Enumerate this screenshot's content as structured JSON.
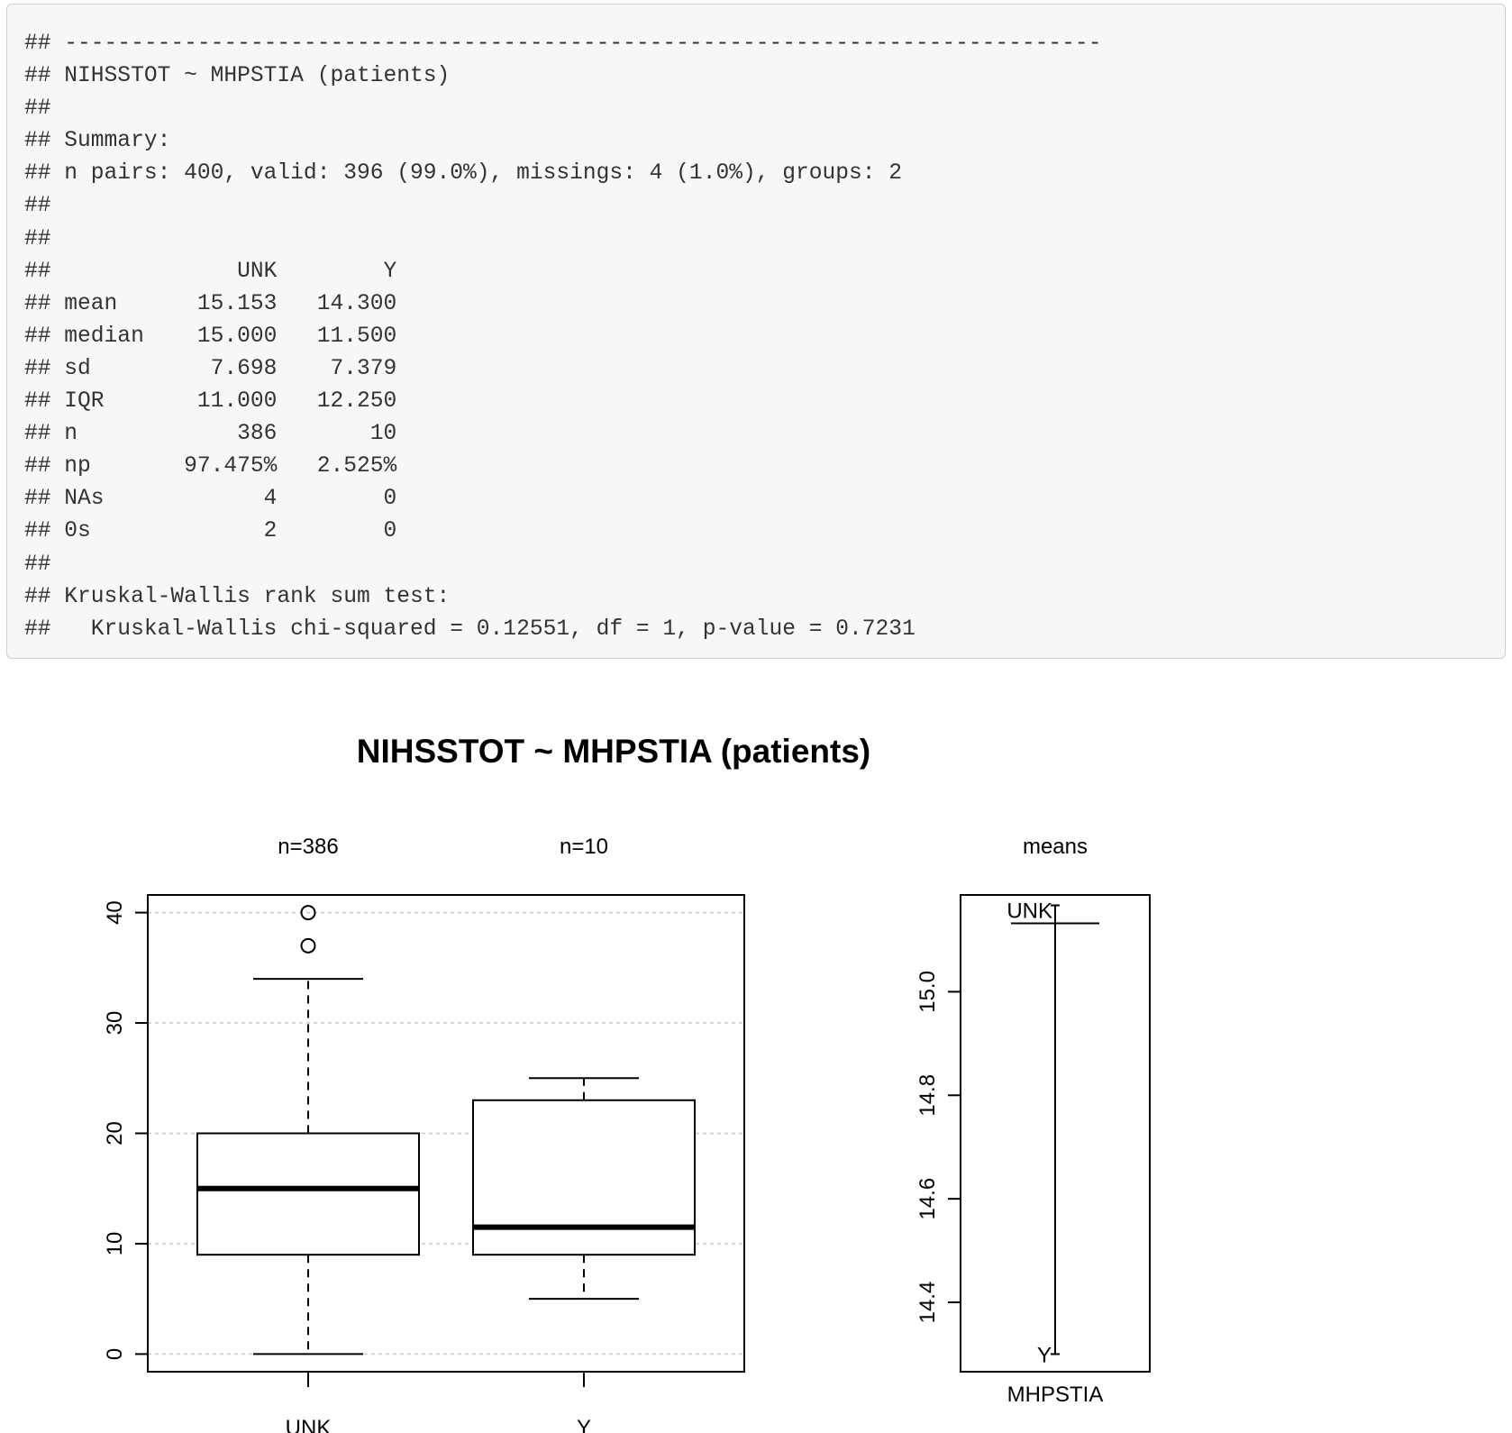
{
  "console": {
    "lines": [
      "## ------------------------------------------------------------------------------",
      "## NIHSSTOT ~ MHPSTIA (patients)",
      "##",
      "## Summary:",
      "## n pairs: 400, valid: 396 (99.0%), missings: 4 (1.0%), groups: 2",
      "##",
      "##",
      "##              UNK        Y",
      "## mean      15.153   14.300",
      "## median    15.000   11.500",
      "## sd         7.698    7.379",
      "## IQR       11.000   12.250",
      "## n            386       10",
      "## np       97.475%   2.525%",
      "## NAs            4        0",
      "## 0s             2        0",
      "##",
      "## Kruskal-Wallis rank sum test:",
      "##   Kruskal-Wallis chi-squared = 0.12551, df = 1, p-value = 0.7231"
    ]
  },
  "chart_data": [
    {
      "type": "boxplot",
      "title": "NIHSSTOT ~ MHPSTIA (patients)",
      "categories": [
        "UNK",
        "Y"
      ],
      "group_counts": [
        "n=386",
        "n=10"
      ],
      "boxes": [
        {
          "name": "UNK",
          "whisker_low": 0,
          "q1": 9,
          "median": 15,
          "q3": 20,
          "whisker_high": 34,
          "outliers": [
            37,
            40
          ]
        },
        {
          "name": "Y",
          "whisker_low": 5,
          "q1": 9,
          "median": 11.5,
          "q3": 23,
          "whisker_high": 25,
          "outliers": []
        }
      ],
      "y_ticks": [
        "0",
        "10",
        "20",
        "30",
        "40"
      ],
      "ylim": [
        -1.6,
        41.6
      ],
      "grid": true,
      "grid_style": "dashed horizontal"
    },
    {
      "type": "line",
      "title": "means",
      "xlabel": "MHPSTIA",
      "series": [
        {
          "name": "UNK",
          "value": 15.153
        },
        {
          "name": "Y",
          "value": 14.3
        }
      ],
      "y_ticks": [
        "14.4",
        "14.6",
        "14.8",
        "15.0"
      ],
      "ylim": [
        14.266,
        15.187
      ]
    }
  ]
}
